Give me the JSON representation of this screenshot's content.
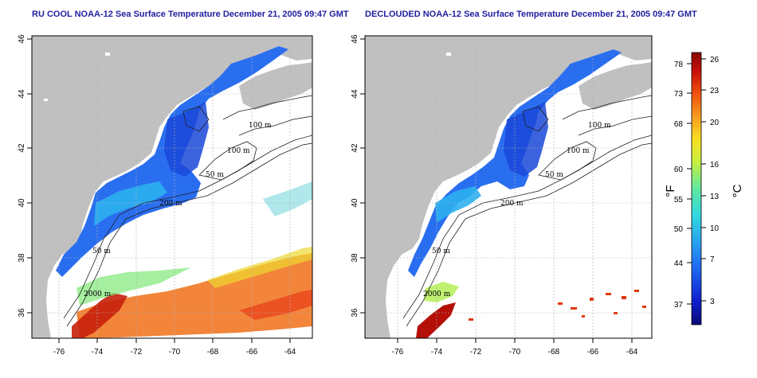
{
  "titles": {
    "left": "RU COOL NOAA-12 Sea Surface Temperature December 21, 2005 09:47 GMT",
    "right": "DECLOUDED NOAA-12 Sea Surface Temperature December 21, 2005 09:47 GMT"
  },
  "axes": {
    "lon_ticks": [
      "-76",
      "-74",
      "-72",
      "-70",
      "-68",
      "-66",
      "-64"
    ],
    "lat_ticks": [
      "46",
      "44",
      "42",
      "40",
      "38",
      "36"
    ]
  },
  "contours": [
    "100 m",
    "100 m",
    "50 m",
    "200 m",
    "50 m",
    "2000 m"
  ],
  "colorbar": {
    "fahrenheit_ticks": [
      "78",
      "73",
      "68",
      "60",
      "55",
      "50",
      "44",
      "37"
    ],
    "celsius_ticks": [
      "26",
      "23",
      "20",
      "16",
      "13",
      "10",
      "7",
      "3"
    ],
    "unit_f": "°F",
    "unit_c": "°C",
    "colors": [
      "#0a0a78",
      "#1020d0",
      "#1e64f0",
      "#28a0f0",
      "#30d8e0",
      "#60e8a0",
      "#c8f040",
      "#f8e020",
      "#f8a020",
      "#f05010",
      "#c81008",
      "#8a0606"
    ]
  }
}
